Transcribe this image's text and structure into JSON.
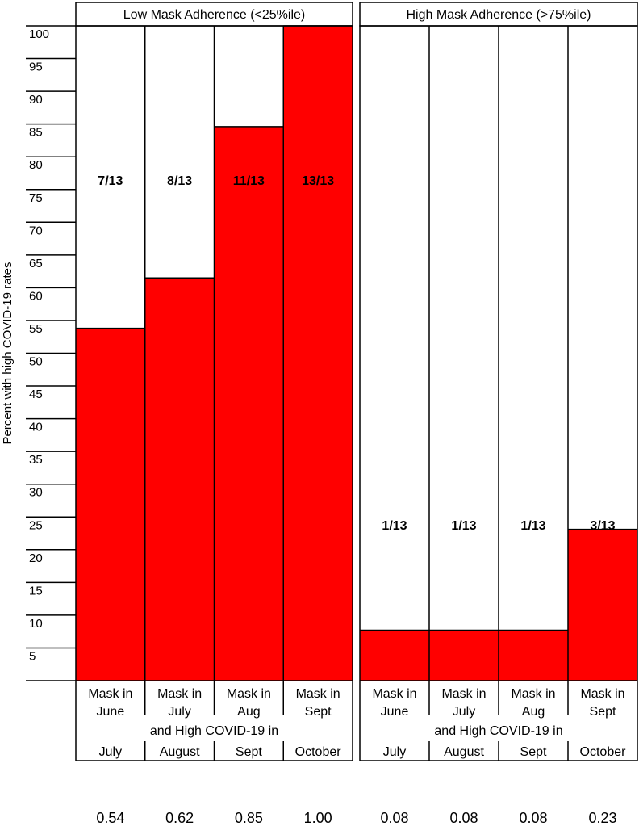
{
  "chart_data": {
    "type": "bar",
    "ylabel": "Percent with high COVID-19 rates",
    "ylim": [
      0,
      100
    ],
    "yticks": [
      5,
      10,
      15,
      20,
      25,
      30,
      35,
      40,
      45,
      50,
      55,
      60,
      65,
      70,
      75,
      80,
      85,
      90,
      95,
      100
    ],
    "x_row_label": "and High COVID-19 in",
    "panels": [
      {
        "title": "Low Mask Adherence (<25%ile)",
        "bars": [
          {
            "mask": [
              "Mask in",
              "June"
            ],
            "outcome": "July",
            "value": 53.8,
            "fraction": "7/13",
            "proportion": "0.54"
          },
          {
            "mask": [
              "Mask in",
              "July"
            ],
            "outcome": "August",
            "value": 61.5,
            "fraction": "8/13",
            "proportion": "0.62"
          },
          {
            "mask": [
              "Mask in",
              "Aug"
            ],
            "outcome": "Sept",
            "value": 84.6,
            "fraction": "11/13",
            "proportion": "0.85"
          },
          {
            "mask": [
              "Mask in",
              "Sept"
            ],
            "outcome": "October",
            "value": 100,
            "fraction": "13/13",
            "proportion": "1.00"
          }
        ]
      },
      {
        "title": "High Mask Adherence (>75%ile)",
        "bars": [
          {
            "mask": [
              "Mask in",
              "June"
            ],
            "outcome": "July",
            "value": 7.7,
            "fraction": "1/13",
            "proportion": "0.08"
          },
          {
            "mask": [
              "Mask in",
              "July"
            ],
            "outcome": "August",
            "value": 7.7,
            "fraction": "1/13",
            "proportion": "0.08"
          },
          {
            "mask": [
              "Mask in",
              "Aug"
            ],
            "outcome": "Sept",
            "value": 7.7,
            "fraction": "1/13",
            "proportion": "0.08"
          },
          {
            "mask": [
              "Mask in",
              "Sept"
            ],
            "outcome": "October",
            "value": 23.1,
            "fraction": "3/13",
            "proportion": "0.23"
          }
        ]
      }
    ],
    "colors": {
      "bar": "#ff0000",
      "border": "#000000"
    }
  }
}
